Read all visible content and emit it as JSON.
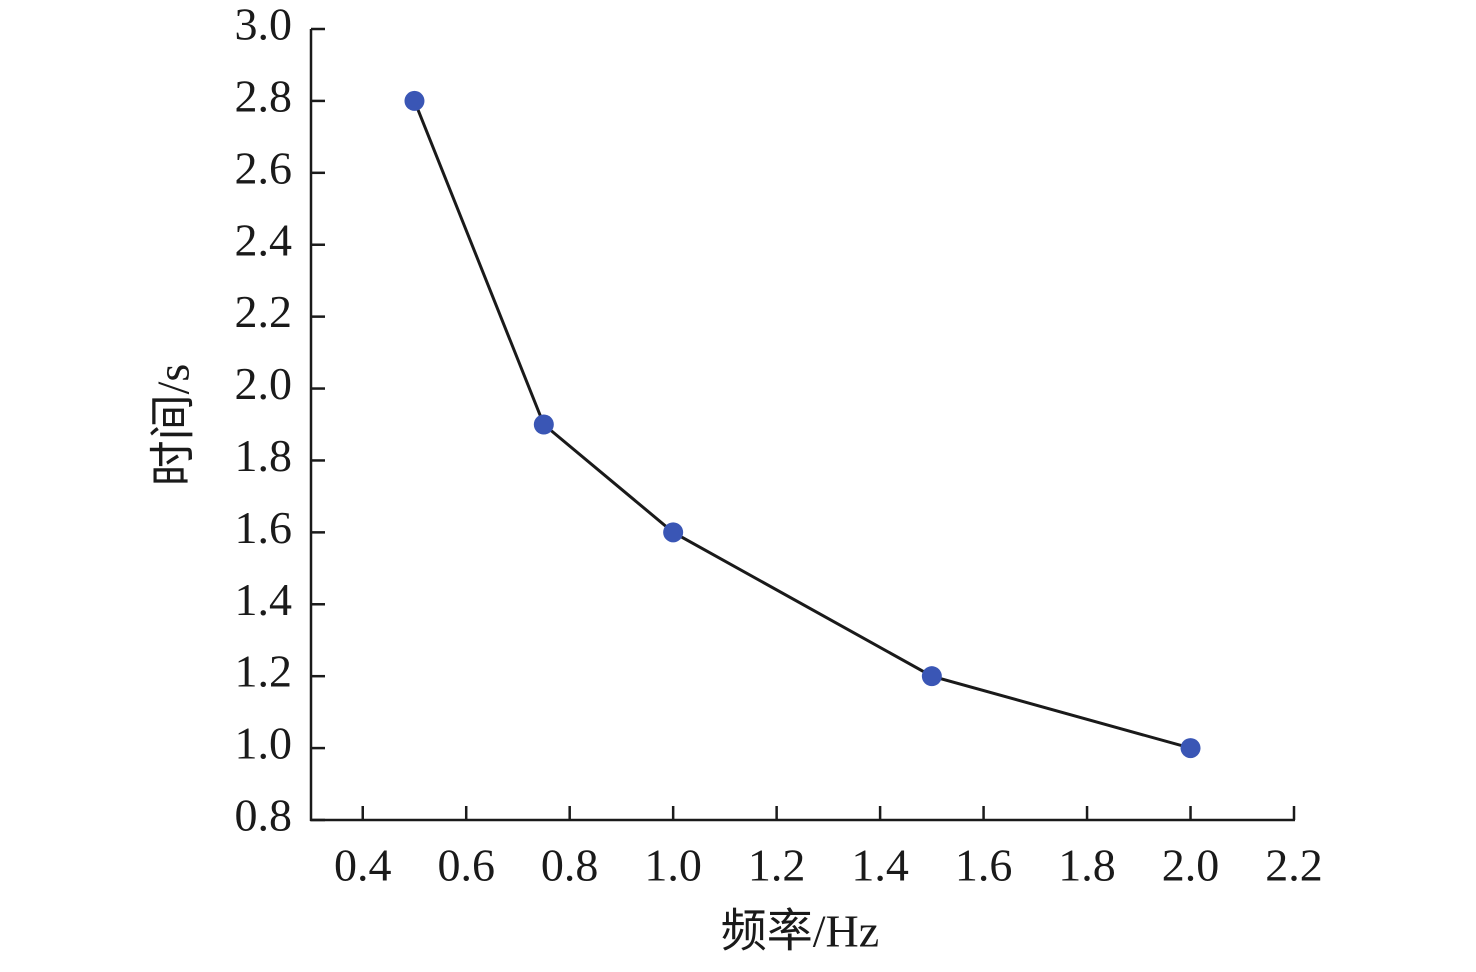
{
  "chart_data": {
    "type": "line",
    "x_label": "频率/Hz",
    "y_label": "时间/s",
    "x": [
      0.5,
      0.75,
      1.0,
      1.5,
      2.0
    ],
    "values": [
      2.8,
      1.9,
      1.6,
      1.2,
      1.0
    ],
    "color": "#3a56b5",
    "line_color": "#1a1a1a",
    "xlim": [
      0.3,
      2.2
    ],
    "xticks": [
      0.4,
      0.6,
      0.8,
      {
        "value": 1.0,
        "label": "1.0"
      },
      1.2,
      1.4,
      1.6,
      1.8,
      {
        "value": 2.0,
        "label": "2.0"
      },
      2.2
    ],
    "ylim": [
      0.8,
      3.0
    ],
    "yticks": [
      0.8,
      {
        "value": 1.0,
        "label": "1.0"
      },
      1.2,
      1.4,
      1.6,
      1.8,
      {
        "value": 2.0,
        "label": "2.0"
      },
      2.2,
      2.4,
      2.6,
      2.8,
      {
        "value": 3.0,
        "label": "3.0"
      }
    ],
    "grid": false
  }
}
